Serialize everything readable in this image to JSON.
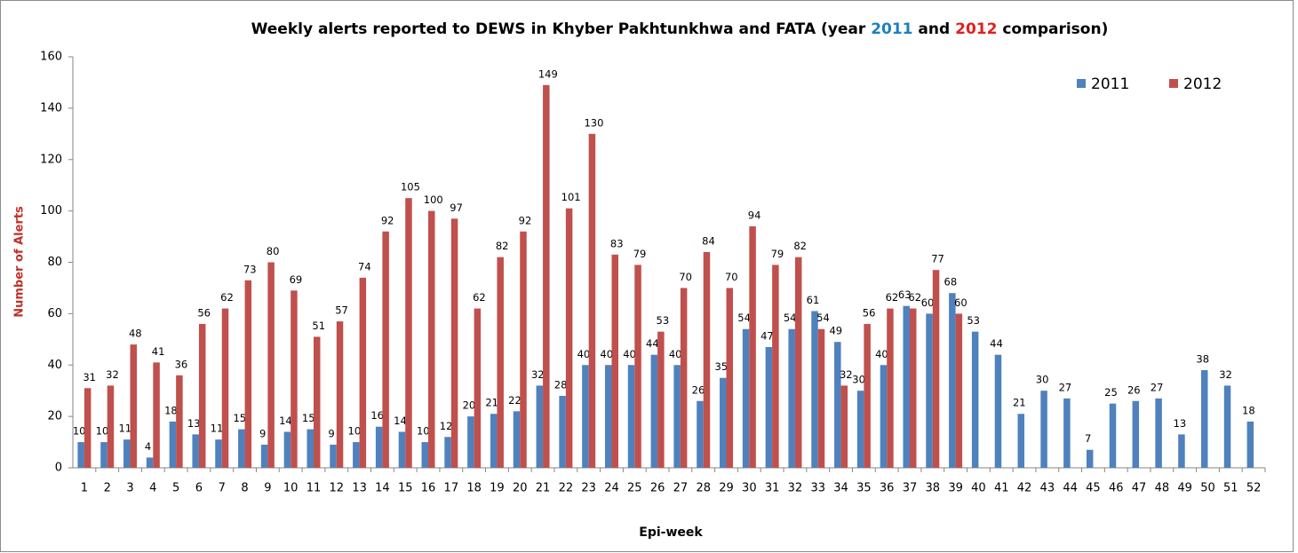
{
  "chart_data": {
    "type": "bar",
    "title": [
      {
        "text": "Weekly alerts reported to DEWS in Khyber Pakhtunkhwa and FATA (year ",
        "color": "#000000"
      },
      {
        "text": "2011",
        "color": "#1f7fc0"
      },
      {
        "text": " and ",
        "color": "#000000"
      },
      {
        "text": "2012",
        "color": "#e0201c"
      },
      {
        "text": " comparison)",
        "color": "#000000"
      }
    ],
    "x_label": "Epi-week",
    "y_label": "Number of Alerts",
    "y_label_color": "#c0302a",
    "categories": [
      "1",
      "2",
      "3",
      "4",
      "5",
      "6",
      "7",
      "8",
      "9",
      "10",
      "11",
      "12",
      "13",
      "14",
      "15",
      "16",
      "17",
      "18",
      "19",
      "20",
      "21",
      "22",
      "23",
      "24",
      "25",
      "26",
      "27",
      "28",
      "29",
      "30",
      "31",
      "32",
      "33",
      "34",
      "35",
      "36",
      "37",
      "38",
      "39",
      "40",
      "41",
      "42",
      "43",
      "44",
      "45",
      "46",
      "47",
      "48",
      "49",
      "50",
      "51",
      "52"
    ],
    "series": [
      {
        "name": "2011",
        "color": "#4f81bd",
        "values": [
          10,
          10,
          11,
          4,
          18,
          13,
          11,
          15,
          9,
          14,
          15,
          9,
          10,
          16,
          14,
          10,
          12,
          20,
          21,
          22,
          32,
          28,
          40,
          40,
          40,
          44,
          40,
          26,
          35,
          54,
          47,
          54,
          61,
          49,
          30,
          40,
          63,
          60,
          68,
          53,
          44,
          21,
          30,
          27,
          7,
          25,
          26,
          27,
          13,
          38,
          32,
          18
        ]
      },
      {
        "name": "2012",
        "color": "#c0504d",
        "values": [
          31,
          32,
          48,
          41,
          36,
          56,
          62,
          73,
          80,
          69,
          51,
          57,
          74,
          92,
          105,
          100,
          97,
          62,
          82,
          92,
          149,
          101,
          130,
          83,
          79,
          53,
          70,
          84,
          70,
          94,
          79,
          82,
          54,
          32,
          56,
          62,
          62,
          77,
          60,
          null,
          null,
          null,
          null,
          null,
          null,
          null,
          null,
          null,
          null,
          null,
          null,
          null
        ]
      }
    ],
    "ylim": [
      0,
      160
    ],
    "yticks": [
      0,
      20,
      40,
      60,
      80,
      100,
      120,
      140,
      160
    ],
    "grid": false,
    "legend": "top-right"
  }
}
